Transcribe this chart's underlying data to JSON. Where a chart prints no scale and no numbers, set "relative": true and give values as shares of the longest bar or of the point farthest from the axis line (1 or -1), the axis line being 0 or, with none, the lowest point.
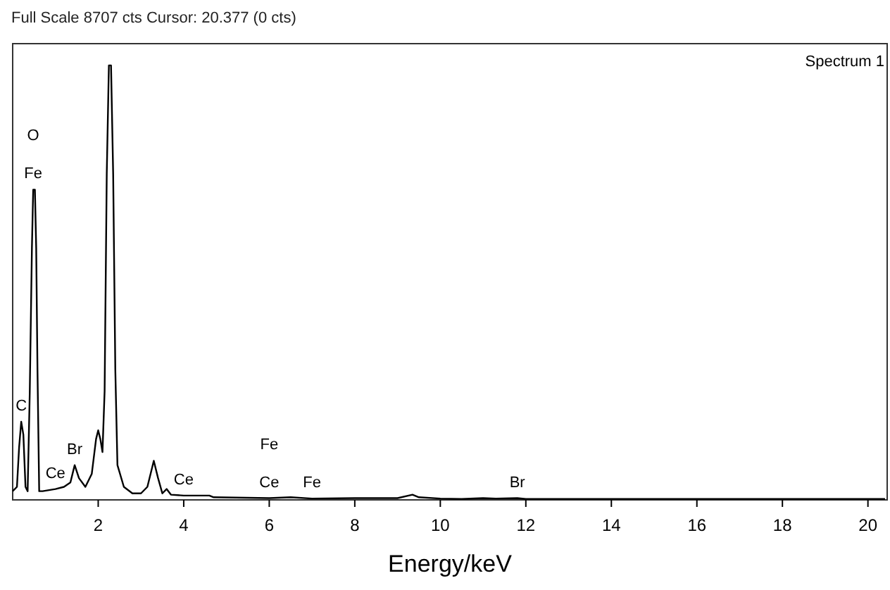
{
  "chart_data": {
    "type": "line",
    "relative": true,
    "title": "Full Scale 8707 cts Cursor: 20.377  (0 cts)",
    "xlabel": "Energy/keV",
    "xlim": [
      0,
      20.45
    ],
    "xticks": [
      2,
      4,
      6,
      8,
      10,
      12,
      14,
      16,
      18,
      20
    ],
    "grid": false,
    "marker": "none",
    "line_style": "solid",
    "annotations": [
      "Spectrum 1",
      {
        "text": "O",
        "x": 0.48,
        "y": 0.714
      },
      {
        "text": "Fe",
        "x": 0.48,
        "y": 0.714
      },
      {
        "text": "C",
        "x": 0.2,
        "y": 0.18
      },
      {
        "text": "Ce",
        "x": 1.0,
        "y": 0.025
      },
      {
        "text": "Br",
        "x": 1.45,
        "y": 0.08
      },
      {
        "text": "Ce",
        "x": 4.0,
        "y": 0.01
      },
      {
        "text": "Fe",
        "x": 6.0,
        "y": 0.004
      },
      {
        "text": "Ce",
        "x": 6.0,
        "y": 0.004
      },
      {
        "text": "Fe",
        "x": 7.0,
        "y": 0.003
      },
      {
        "text": "Br",
        "x": 11.8,
        "y": 0.004
      }
    ],
    "series": [
      {
        "color": "#000000",
        "x": [
          0,
          0.1,
          0.15,
          0.2,
          0.25,
          0.3,
          0.35,
          0.4,
          0.45,
          0.48,
          0.52,
          0.55,
          0.58,
          0.62,
          0.7,
          1.0,
          1.2,
          1.35,
          1.45,
          1.55,
          1.7,
          1.85,
          1.95,
          2.0,
          2.05,
          2.1,
          2.15,
          2.2,
          2.25,
          2.3,
          2.35,
          2.4,
          2.45,
          2.6,
          2.8,
          3.0,
          3.15,
          3.3,
          3.4,
          3.5,
          3.6,
          3.7,
          4.0,
          4.6,
          4.7,
          6.0,
          6.5,
          7.0,
          8.0,
          9.0,
          9.35,
          9.5,
          10.0,
          10.5,
          11.0,
          11.3,
          11.8,
          12.0,
          20.4
        ],
        "values": [
          0.02,
          0.03,
          0.12,
          0.18,
          0.15,
          0.03,
          0.02,
          0.25,
          0.58,
          0.714,
          0.714,
          0.58,
          0.3,
          0.02,
          0.02,
          0.025,
          0.03,
          0.04,
          0.08,
          0.05,
          0.03,
          0.06,
          0.14,
          0.16,
          0.14,
          0.11,
          0.25,
          0.75,
          1.0,
          1.0,
          0.75,
          0.3,
          0.08,
          0.03,
          0.015,
          0.015,
          0.03,
          0.09,
          0.05,
          0.015,
          0.025,
          0.012,
          0.01,
          0.01,
          0.006,
          0.004,
          0.006,
          0.003,
          0.004,
          0.004,
          0.012,
          0.006,
          0.003,
          0.002,
          0.004,
          0.003,
          0.004,
          0.002,
          0.002
        ]
      }
    ]
  }
}
